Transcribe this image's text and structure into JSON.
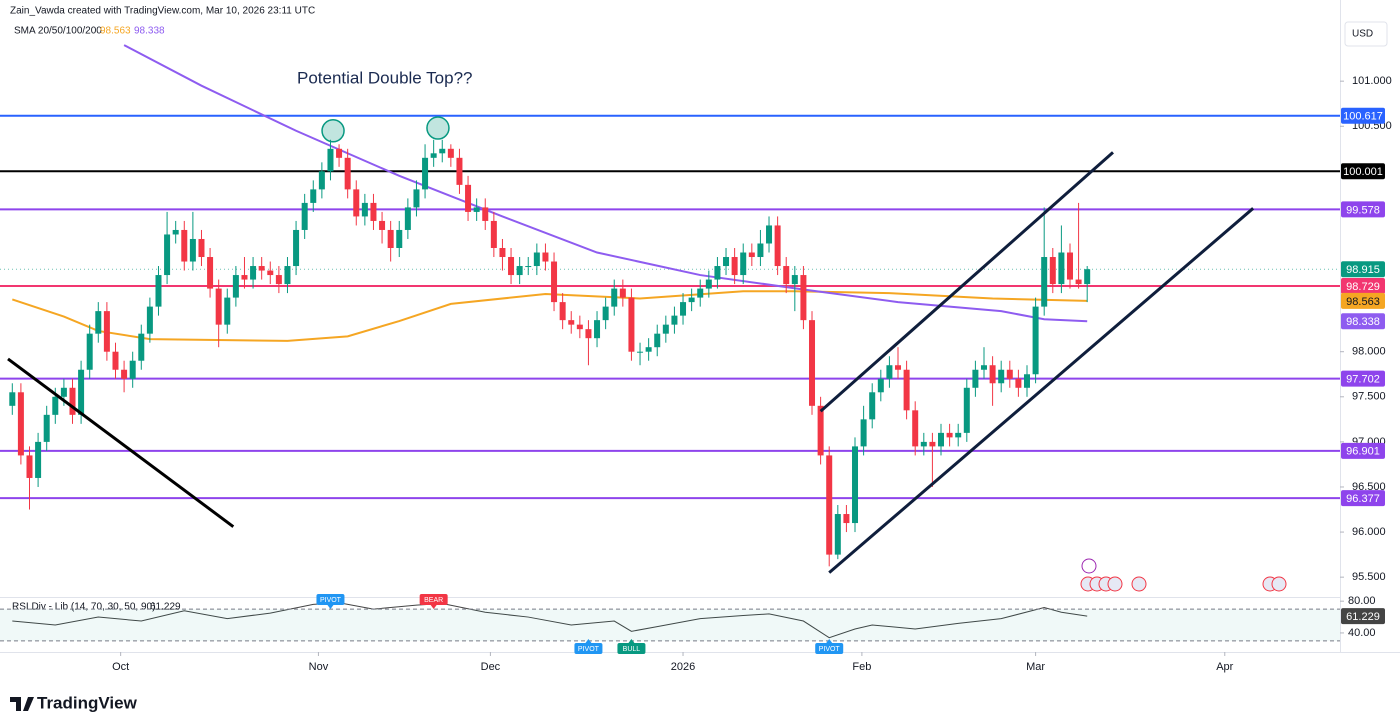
{
  "header": {
    "author_line": "Zain_Vawda created with TradingView.com, Mar 10, 2026 23:11 UTC",
    "currency": "USD",
    "logo": "TradingView"
  },
  "chart_data": {
    "type": "candlestick",
    "annotation": "Potential Double Top??",
    "indicator_label": "SMA 20/50/100/200",
    "xlim": [
      -0.5,
      154.4
    ],
    "ylim": [
      95.28,
      101.9
    ],
    "xticks": [
      {
        "value": 12.6,
        "label": "Oct"
      },
      {
        "value": 35.6,
        "label": "Nov"
      },
      {
        "value": 55.6,
        "label": "Dec"
      },
      {
        "value": 78,
        "label": "2026"
      },
      {
        "value": 98.8,
        "label": "Feb"
      },
      {
        "value": 119,
        "label": "Mar"
      },
      {
        "value": 141,
        "label": "Apr"
      }
    ],
    "yticks": [
      {
        "value": 101,
        "label": "101.000"
      },
      {
        "value": 100.5,
        "label": "100.500"
      },
      {
        "value": 98,
        "label": "98.000"
      },
      {
        "value": 97.5,
        "label": "97.500"
      },
      {
        "value": 97,
        "label": "97.000"
      },
      {
        "value": 96.5,
        "label": "96.500"
      },
      {
        "value": 96,
        "label": "96.000"
      },
      {
        "value": 95.5,
        "label": "95.500"
      }
    ],
    "up_color": "#089981",
    "down_color": "#f23645",
    "open": [
      97.4,
      97.55,
      96.85,
      96.6,
      97.0,
      97.3,
      97.5,
      97.6,
      97.3,
      97.8,
      98.2,
      98.45,
      98.0,
      97.8,
      97.7,
      97.9,
      98.2,
      98.5,
      98.85,
      99.3,
      99.35,
      99.0,
      99.25,
      99.05,
      98.7,
      98.3,
      98.6,
      98.85,
      98.8,
      98.95,
      98.9,
      98.85,
      98.75,
      98.95,
      99.35,
      99.65,
      99.8,
      100.0,
      100.25,
      100.15,
      99.8,
      99.5,
      99.65,
      99.45,
      99.35,
      99.15,
      99.35,
      99.6,
      99.8,
      100.15,
      100.2,
      100.25,
      100.15,
      99.85,
      99.55,
      99.6,
      99.45,
      99.15,
      99.05,
      98.85,
      98.95,
      98.95,
      99.1,
      99.0,
      98.55,
      98.35,
      98.3,
      98.25,
      98.15,
      98.35,
      98.5,
      98.7,
      98.6,
      98.0,
      98.0,
      98.05,
      98.2,
      98.3,
      98.4,
      98.55,
      98.6,
      98.7,
      98.8,
      98.95,
      99.05,
      98.85,
      99.1,
      99.05,
      99.2,
      99.4,
      98.95,
      98.75,
      98.85,
      98.35,
      97.4,
      96.85,
      95.75,
      96.2,
      96.1,
      96.95,
      97.25,
      97.55,
      97.7,
      97.85,
      97.8,
      97.35,
      96.95,
      97.0,
      96.95,
      97.1,
      97.05,
      97.1,
      97.6,
      97.8,
      97.85,
      97.65,
      97.8,
      97.7,
      97.6,
      97.75,
      98.5,
      99.05,
      98.75,
      99.1,
      98.8,
      98.75
    ],
    "high": [
      97.65,
      97.65,
      96.95,
      97.1,
      97.4,
      97.6,
      97.7,
      97.7,
      97.9,
      98.3,
      98.55,
      98.55,
      98.1,
      97.9,
      98.0,
      98.3,
      98.6,
      98.95,
      99.55,
      99.45,
      99.45,
      99.55,
      99.35,
      99.15,
      98.8,
      98.7,
      98.95,
      99.05,
      99.05,
      99.05,
      99.0,
      98.95,
      99.05,
      99.45,
      99.75,
      99.9,
      100.1,
      100.35,
      100.3,
      100.25,
      99.9,
      99.75,
      99.75,
      99.55,
      99.45,
      99.45,
      99.7,
      99.9,
      100.3,
      100.35,
      100.35,
      100.3,
      100.25,
      99.95,
      99.7,
      99.7,
      99.55,
      99.25,
      99.15,
      99.05,
      99.05,
      99.2,
      99.2,
      99.1,
      98.65,
      98.45,
      98.4,
      98.35,
      98.45,
      98.6,
      98.8,
      98.8,
      98.7,
      98.1,
      98.15,
      98.3,
      98.4,
      98.5,
      98.65,
      98.7,
      98.8,
      98.9,
      99.05,
      99.15,
      99.15,
      99.2,
      99.2,
      99.35,
      99.5,
      99.5,
      99.05,
      98.95,
      98.95,
      98.45,
      97.5,
      96.95,
      96.3,
      96.3,
      97.05,
      97.4,
      97.65,
      97.8,
      97.95,
      98.05,
      97.9,
      97.45,
      97.1,
      97.1,
      97.2,
      97.2,
      97.2,
      97.7,
      97.9,
      98.05,
      97.95,
      97.9,
      97.9,
      97.8,
      97.85,
      98.6,
      99.6,
      99.15,
      99.4,
      99.2,
      99.65,
      98.95
    ],
    "low": [
      97.3,
      96.75,
      96.25,
      96.5,
      96.9,
      97.2,
      97.4,
      97.2,
      97.2,
      97.7,
      98.1,
      97.9,
      97.7,
      97.55,
      97.6,
      97.8,
      98.1,
      98.4,
      98.75,
      99.2,
      98.9,
      98.9,
      98.95,
      98.6,
      98.05,
      98.2,
      98.5,
      98.7,
      98.7,
      98.8,
      98.75,
      98.65,
      98.65,
      98.85,
      99.25,
      99.55,
      99.7,
      99.9,
      100.05,
      99.7,
      99.4,
      99.4,
      99.35,
      99.2,
      99.0,
      99.05,
      99.25,
      99.5,
      99.7,
      100.05,
      100.1,
      100.05,
      99.75,
      99.45,
      99.45,
      99.35,
      99.05,
      98.9,
      98.75,
      98.75,
      98.85,
      98.85,
      98.9,
      98.45,
      98.25,
      98.2,
      98.15,
      97.85,
      98.05,
      98.25,
      98.4,
      98.5,
      97.9,
      97.85,
      97.9,
      97.95,
      98.1,
      98.2,
      98.3,
      98.45,
      98.5,
      98.6,
      98.7,
      98.85,
      98.75,
      98.75,
      98.95,
      98.95,
      99.1,
      98.85,
      98.65,
      98.45,
      98.25,
      97.3,
      96.75,
      95.62,
      95.7,
      96.0,
      96.0,
      96.85,
      97.15,
      97.45,
      97.6,
      97.7,
      97.25,
      96.85,
      96.85,
      96.5,
      96.85,
      96.95,
      96.95,
      97.0,
      97.5,
      97.7,
      97.4,
      97.55,
      97.6,
      97.5,
      97.5,
      97.65,
      98.4,
      98.65,
      98.65,
      98.7,
      98.7,
      98.55
    ],
    "close": [
      97.55,
      96.85,
      96.6,
      97.0,
      97.3,
      97.5,
      97.6,
      97.3,
      97.8,
      98.2,
      98.45,
      98.0,
      97.8,
      97.7,
      97.9,
      98.2,
      98.5,
      98.85,
      99.3,
      99.35,
      99.0,
      99.25,
      99.05,
      98.7,
      98.3,
      98.6,
      98.85,
      98.8,
      98.95,
      98.9,
      98.85,
      98.75,
      98.95,
      99.35,
      99.65,
      99.8,
      100.0,
      100.25,
      100.15,
      99.8,
      99.5,
      99.65,
      99.45,
      99.35,
      99.15,
      99.35,
      99.6,
      99.8,
      100.15,
      100.2,
      100.25,
      100.15,
      99.85,
      99.55,
      99.6,
      99.45,
      99.15,
      99.05,
      98.85,
      98.95,
      98.95,
      99.1,
      99.0,
      98.55,
      98.35,
      98.3,
      98.25,
      98.15,
      98.35,
      98.5,
      98.7,
      98.6,
      98.0,
      98.0,
      98.05,
      98.2,
      98.3,
      98.4,
      98.55,
      98.6,
      98.7,
      98.8,
      98.95,
      99.05,
      98.85,
      99.1,
      99.05,
      99.2,
      99.4,
      98.95,
      98.75,
      98.85,
      98.35,
      97.4,
      96.85,
      95.75,
      96.2,
      96.1,
      96.95,
      97.25,
      97.55,
      97.7,
      97.85,
      97.8,
      97.35,
      96.95,
      97.0,
      96.95,
      97.1,
      97.05,
      97.1,
      97.6,
      97.8,
      97.85,
      97.65,
      97.8,
      97.7,
      97.6,
      97.75,
      98.5,
      99.05,
      98.75,
      99.1,
      98.8,
      98.75,
      98.915
    ],
    "sma": [
      {
        "color": "#f5a623",
        "x": [
          0,
          6,
          10,
          16,
          32,
          39,
          45,
          51,
          62,
          73,
          85,
          91,
          102,
          114,
          125
        ],
        "values": [
          98.58,
          98.39,
          98.23,
          98.14,
          98.12,
          98.17,
          98.34,
          98.53,
          98.64,
          98.59,
          98.67,
          98.67,
          98.65,
          98.59,
          98.563
        ]
      },
      {
        "color": "#8e5cf0",
        "x": [
          13,
          22,
          33,
          45,
          57,
          68,
          80,
          92,
          103,
          115,
          120,
          125
        ],
        "values": [
          101.4,
          100.95,
          100.45,
          99.95,
          99.5,
          99.1,
          98.85,
          98.69,
          98.55,
          98.45,
          98.36,
          98.338
        ]
      }
    ],
    "levels": [
      {
        "value": 100.617,
        "color": "#2962ff"
      },
      {
        "value": 100.001,
        "color": "#000000"
      },
      {
        "value": 99.578,
        "color": "#8e44ec"
      },
      {
        "value": 98.729,
        "color": "#f23670"
      },
      {
        "value": 97.702,
        "color": "#8e44ec"
      },
      {
        "value": 96.901,
        "color": "#8e44ec"
      },
      {
        "value": 96.377,
        "color": "#8e44ec"
      }
    ],
    "trendlines": [
      {
        "color": "#000000",
        "x": [
          -0.5,
          25.7
        ],
        "values": [
          97.92,
          96.06
        ]
      },
      {
        "color": "#0f1e3c",
        "x": [
          94,
          128
        ],
        "values": [
          97.34,
          100.21
        ]
      },
      {
        "color": "#0f1e3c",
        "x": [
          95,
          144.3
        ],
        "values": [
          95.55,
          99.59
        ]
      }
    ],
    "markers": [
      {
        "x": 37.3,
        "value": 100.45
      },
      {
        "x": 49.5,
        "value": 100.48
      }
    ],
    "last_price_line": true,
    "rsi": {
      "label": "RSI Div - Lib (14, 70, 30, 50, 90)",
      "color": "#444444",
      "ylim": [
        16,
        84
      ],
      "yticks": [
        {
          "value": 80,
          "label": "80.00"
        },
        {
          "value": 40,
          "label": "40.00"
        }
      ],
      "levels": [
        70,
        30
      ],
      "x": [
        0,
        5,
        10,
        15,
        20,
        25,
        30,
        35,
        38,
        42,
        47,
        50,
        55,
        60,
        65,
        70,
        72,
        75,
        80,
        85,
        88,
        92,
        95,
        98,
        100,
        105,
        110,
        115,
        120,
        122,
        125
      ],
      "values": [
        55,
        50,
        60,
        55,
        68,
        58,
        65,
        76,
        78,
        70,
        75,
        77,
        66,
        60,
        50,
        55,
        42,
        48,
        58,
        62,
        64,
        55,
        34,
        45,
        50,
        45,
        52,
        58,
        72,
        66,
        61.229
      ],
      "signals": [
        {
          "label": "PIVOT",
          "x": 37,
          "position": "top"
        },
        {
          "label": "BEAR",
          "x": 49,
          "position": "top"
        },
        {
          "label": "PIVOT",
          "x": 67,
          "position": "bottom"
        },
        {
          "label": "BULL",
          "x": 72,
          "position": "bottom"
        },
        {
          "label": "PIVOT",
          "x": 95,
          "position": "bottom"
        }
      ]
    }
  }
}
